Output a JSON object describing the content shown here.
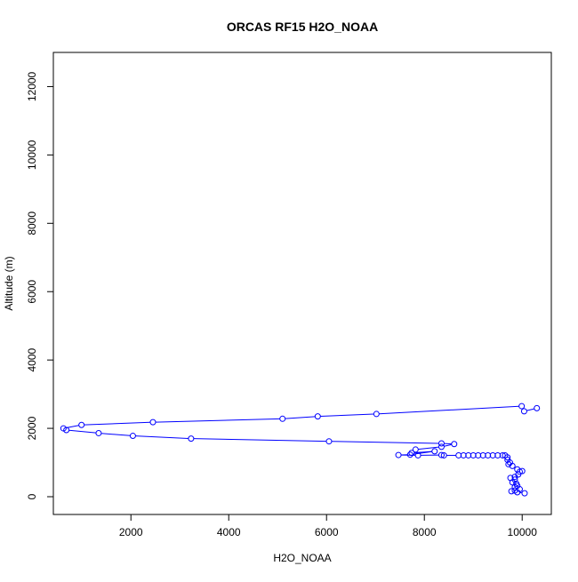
{
  "chart_data": {
    "type": "line",
    "title": "ORCAS RF15 H2O_NOAA",
    "xlabel": "H2O_NOAA",
    "ylabel": "Altitude (m)",
    "xlim": [
      414,
      10596
    ],
    "ylim": [
      -520,
      13000
    ],
    "xticks": [
      2000,
      4000,
      6000,
      8000,
      10000
    ],
    "yticks": [
      0,
      2000,
      4000,
      6000,
      8000,
      10000,
      12000
    ],
    "grid": false,
    "color": "#0000ff",
    "marker": "open-circle",
    "series": [
      {
        "points": [
          [
            10300,
            2590
          ],
          [
            10040,
            2500
          ],
          [
            9990,
            2650
          ],
          [
            7020,
            2420
          ],
          [
            5820,
            2350
          ],
          [
            5100,
            2280
          ],
          [
            2450,
            2180
          ],
          [
            990,
            2100
          ],
          [
            620,
            2000
          ],
          [
            680,
            1950
          ],
          [
            1340,
            1860
          ],
          [
            2040,
            1780
          ],
          [
            3230,
            1700
          ],
          [
            6050,
            1620
          ],
          [
            8350,
            1560
          ],
          [
            8610,
            1540
          ],
          [
            8350,
            1460
          ],
          [
            7820,
            1380
          ],
          [
            7740,
            1280
          ],
          [
            8210,
            1330
          ],
          [
            7710,
            1230
          ],
          [
            7470,
            1220
          ],
          [
            7870,
            1210
          ],
          [
            8350,
            1220
          ],
          [
            8400,
            1210
          ],
          [
            8700,
            1210
          ],
          [
            8800,
            1210
          ],
          [
            8900,
            1210
          ],
          [
            9000,
            1210
          ],
          [
            9100,
            1210
          ],
          [
            9200,
            1210
          ],
          [
            9300,
            1210
          ],
          [
            9400,
            1210
          ],
          [
            9500,
            1210
          ],
          [
            9600,
            1210
          ],
          [
            9650,
            1210
          ],
          [
            9700,
            1150
          ],
          [
            9700,
            1080
          ],
          [
            9750,
            1000
          ],
          [
            9720,
            950
          ],
          [
            9800,
            900
          ],
          [
            9900,
            800
          ],
          [
            9950,
            730
          ],
          [
            10000,
            750
          ],
          [
            9920,
            650
          ],
          [
            9850,
            580
          ],
          [
            9760,
            550
          ],
          [
            9850,
            500
          ],
          [
            9800,
            420
          ],
          [
            9880,
            380
          ],
          [
            9900,
            320
          ],
          [
            9850,
            280
          ],
          [
            9950,
            220
          ],
          [
            9850,
            180
          ],
          [
            9780,
            160
          ],
          [
            9900,
            130
          ],
          [
            10050,
            100
          ]
        ]
      }
    ]
  }
}
